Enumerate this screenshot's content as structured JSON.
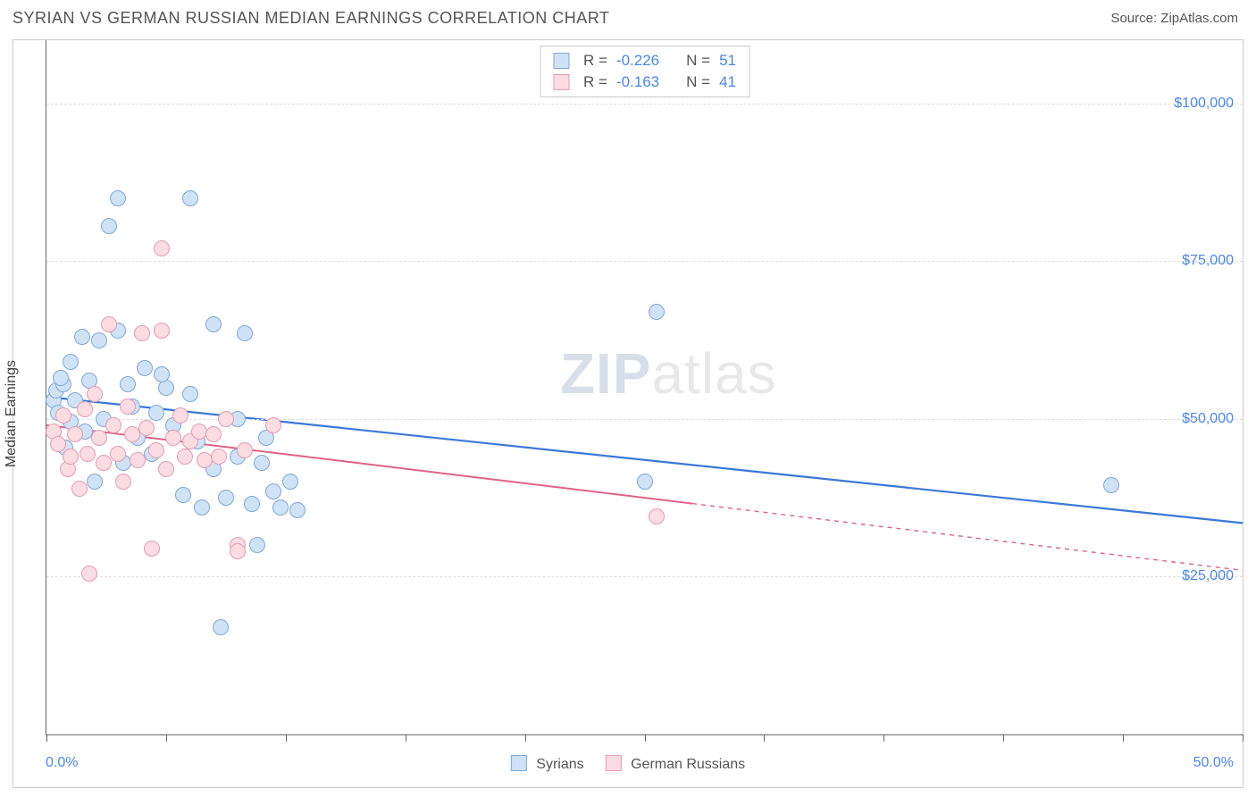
{
  "header": {
    "title": "SYRIAN VS GERMAN RUSSIAN MEDIAN EARNINGS CORRELATION CHART",
    "source": "Source: ZipAtlas.com"
  },
  "chart": {
    "type": "scatter",
    "ylabel": "Median Earnings",
    "watermark_a": "ZIP",
    "watermark_b": "atlas",
    "xlim": [
      0,
      50
    ],
    "ylim": [
      0,
      110000
    ],
    "xtick_label_min": "0.0%",
    "xtick_label_max": "50.0%",
    "xticks": [
      0,
      5,
      10,
      15,
      20,
      25,
      30,
      35,
      40,
      45,
      50
    ],
    "yticks": [
      {
        "value": 25000,
        "label": "$25,000"
      },
      {
        "value": 50000,
        "label": "$50,000"
      },
      {
        "value": 75000,
        "label": "$75,000"
      },
      {
        "value": 100000,
        "label": "$100,000"
      }
    ],
    "grid_color": "#dddddd",
    "background_color": "#ffffff",
    "series": [
      {
        "name": "Syrians",
        "fill_color": "#cfe2f6",
        "stroke_color": "#7fa8d8",
        "r_label": "R = ",
        "r_value": "-0.226",
        "n_label": "N = ",
        "n_value": "51",
        "trend": {
          "x1": 0,
          "y1": 53500,
          "x2": 50,
          "y2": 33500,
          "solid_to_x": 50,
          "color": "#3b78d8",
          "width": 2.2
        },
        "points": [
          [
            0.3,
            53000
          ],
          [
            0.4,
            54500
          ],
          [
            0.5,
            51000
          ],
          [
            0.7,
            55500
          ],
          [
            0.8,
            45500
          ],
          [
            1.0,
            59000
          ],
          [
            1.2,
            53000
          ],
          [
            1.5,
            63000
          ],
          [
            1.6,
            48000
          ],
          [
            1.8,
            56000
          ],
          [
            2.0,
            40000
          ],
          [
            2.2,
            62500
          ],
          [
            2.4,
            50000
          ],
          [
            2.6,
            80500
          ],
          [
            3.0,
            85000
          ],
          [
            3.0,
            64000
          ],
          [
            3.2,
            43000
          ],
          [
            3.4,
            55500
          ],
          [
            3.6,
            52000
          ],
          [
            3.8,
            47000
          ],
          [
            4.1,
            58000
          ],
          [
            4.4,
            44500
          ],
          [
            4.6,
            51000
          ],
          [
            5.0,
            55000
          ],
          [
            5.3,
            49000
          ],
          [
            5.7,
            38000
          ],
          [
            6.0,
            85000
          ],
          [
            6.0,
            54000
          ],
          [
            6.3,
            46500
          ],
          [
            6.5,
            36000
          ],
          [
            7.0,
            65000
          ],
          [
            7.0,
            42000
          ],
          [
            7.3,
            17000
          ],
          [
            7.5,
            37500
          ],
          [
            8.0,
            50000
          ],
          [
            8.0,
            44000
          ],
          [
            8.3,
            63500
          ],
          [
            8.6,
            36500
          ],
          [
            9.0,
            43000
          ],
          [
            9.2,
            47000
          ],
          [
            9.5,
            38500
          ],
          [
            9.8,
            36000
          ],
          [
            10.2,
            40000
          ],
          [
            10.5,
            35500
          ],
          [
            8.8,
            30000
          ],
          [
            25.5,
            67000
          ],
          [
            25.0,
            40000
          ],
          [
            44.5,
            39500
          ],
          [
            4.8,
            57000
          ],
          [
            1.0,
            49500
          ],
          [
            0.6,
            56500
          ]
        ]
      },
      {
        "name": "German Russians",
        "fill_color": "#fbdce3",
        "stroke_color": "#e79ab0",
        "r_label": "R = ",
        "r_value": "-0.163",
        "n_label": "N = ",
        "n_value": "41",
        "trend": {
          "x1": 0,
          "y1": 49000,
          "x2": 50,
          "y2": 26000,
          "solid_to_x": 27,
          "color": "#e06287",
          "width": 2.0
        },
        "points": [
          [
            0.3,
            48000
          ],
          [
            0.5,
            46000
          ],
          [
            0.7,
            50500
          ],
          [
            0.9,
            42000
          ],
          [
            1.0,
            44000
          ],
          [
            1.2,
            47500
          ],
          [
            1.4,
            39000
          ],
          [
            1.6,
            51500
          ],
          [
            1.7,
            44500
          ],
          [
            1.8,
            25500
          ],
          [
            2.0,
            54000
          ],
          [
            2.2,
            47000
          ],
          [
            2.4,
            43000
          ],
          [
            2.6,
            65000
          ],
          [
            2.8,
            49000
          ],
          [
            3.0,
            44500
          ],
          [
            3.2,
            40000
          ],
          [
            3.4,
            52000
          ],
          [
            3.6,
            47500
          ],
          [
            3.8,
            43500
          ],
          [
            4.0,
            63500
          ],
          [
            4.2,
            48500
          ],
          [
            4.4,
            29500
          ],
          [
            4.6,
            45000
          ],
          [
            4.8,
            64000
          ],
          [
            4.8,
            77000
          ],
          [
            5.0,
            42000
          ],
          [
            5.3,
            47000
          ],
          [
            5.6,
            50500
          ],
          [
            5.8,
            44000
          ],
          [
            6.0,
            46500
          ],
          [
            6.4,
            48000
          ],
          [
            6.6,
            43500
          ],
          [
            7.0,
            47500
          ],
          [
            7.2,
            44000
          ],
          [
            7.5,
            50000
          ],
          [
            8.0,
            30000
          ],
          [
            8.0,
            29000
          ],
          [
            8.3,
            45000
          ],
          [
            9.5,
            49000
          ],
          [
            25.5,
            34500
          ]
        ]
      }
    ]
  }
}
